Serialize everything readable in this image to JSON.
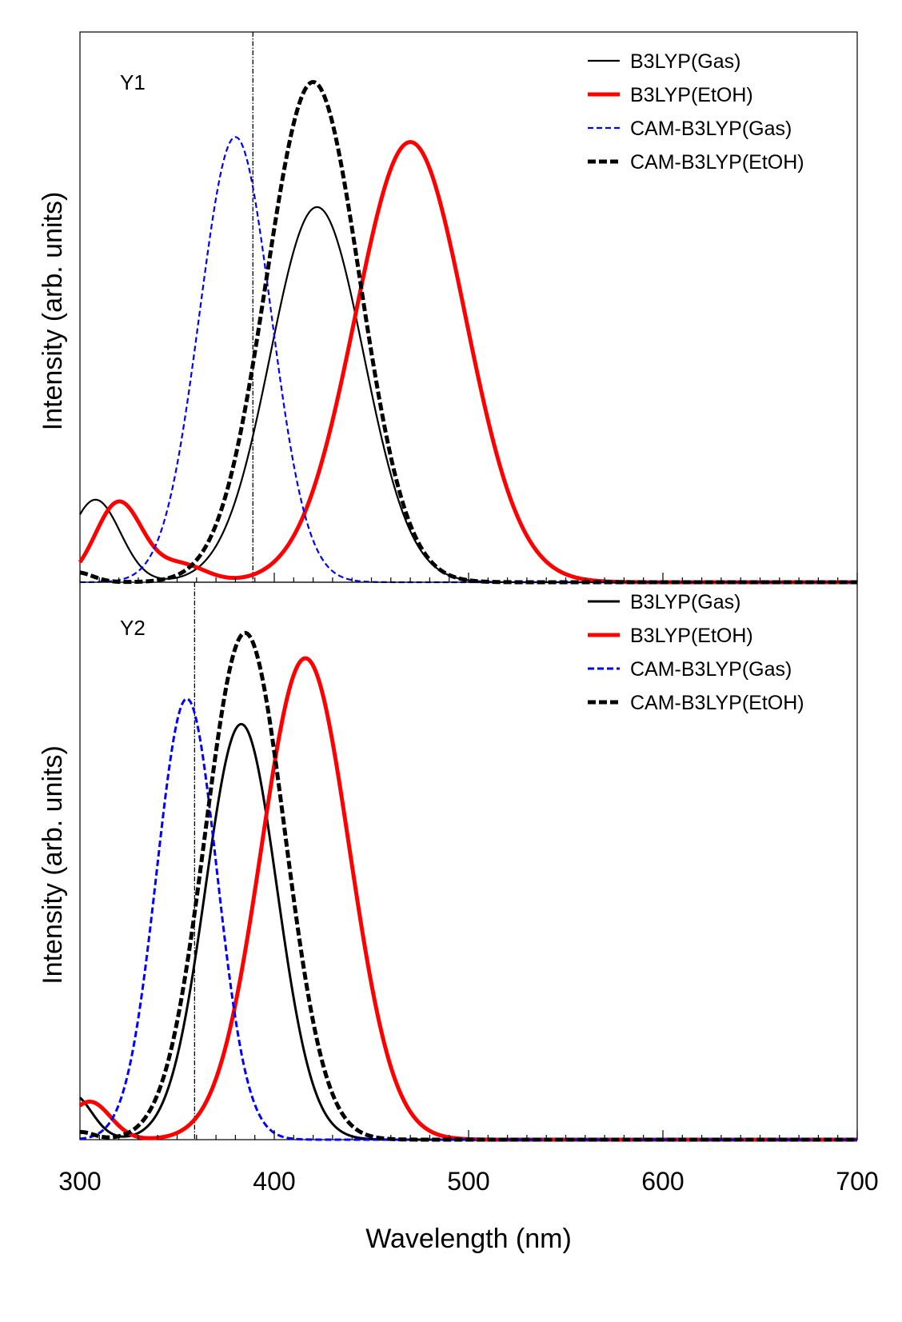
{
  "chart_data": [
    {
      "type": "line",
      "panel_label": "Y1",
      "xlabel": "Wavelength (nm)",
      "ylabel": "Intensity (arb. units)",
      "xlim": [
        300,
        700
      ],
      "ylim": [
        0,
        1.1
      ],
      "grid": false,
      "legend_position": "top-right",
      "reference_line_x": 389,
      "series": [
        {
          "name": "B3LYP(Gas)",
          "style": "thin-solid",
          "color": "#000000",
          "peaks": [
            {
              "center": 422,
              "height": 0.75,
              "width": 34
            },
            {
              "center": 308,
              "height": 0.165,
              "width": 18
            }
          ]
        },
        {
          "name": "B3LYP(EtOH)",
          "style": "thick-solid",
          "color": "#ff0000",
          "peaks": [
            {
              "center": 470,
              "height": 0.88,
              "width": 40
            },
            {
              "center": 320,
              "height": 0.16,
              "width": 17
            },
            {
              "center": 352,
              "height": 0.035,
              "width": 18
            }
          ]
        },
        {
          "name": "CAM-B3LYP(Gas)",
          "style": "thin-dashed",
          "color": "#0000ff",
          "peaks": [
            {
              "center": 380,
              "height": 0.89,
              "width": 26
            }
          ]
        },
        {
          "name": "CAM-B3LYP(EtOH)",
          "style": "thick-dashed",
          "color": "#000000",
          "peaks": [
            {
              "center": 420,
              "height": 1.0,
              "width": 34
            },
            {
              "center": 298,
              "height": 0.02,
              "width": 12
            }
          ]
        }
      ]
    },
    {
      "type": "line",
      "panel_label": "Y2",
      "xlabel": "Wavelength (nm)",
      "ylabel": "Intensity (arb. units)",
      "xlim": [
        300,
        700
      ],
      "ylim": [
        0,
        1.1
      ],
      "grid": false,
      "legend_position": "top-right",
      "reference_line_x": 359,
      "series": [
        {
          "name": "B3LYP(Gas)",
          "style": "solid",
          "color": "#000000",
          "peaks": [
            {
              "center": 383,
              "height": 0.82,
              "width": 26
            },
            {
              "center": 296,
              "height": 0.09,
              "width": 14
            }
          ]
        },
        {
          "name": "B3LYP(EtOH)",
          "style": "thick-solid",
          "color": "#ff0000",
          "peaks": [
            {
              "center": 416,
              "height": 0.95,
              "width": 32
            },
            {
              "center": 305,
              "height": 0.075,
              "width": 15
            }
          ]
        },
        {
          "name": "CAM-B3LYP(Gas)",
          "style": "dashed",
          "color": "#0000ff",
          "peaks": [
            {
              "center": 355,
              "height": 0.87,
              "width": 22
            }
          ]
        },
        {
          "name": "CAM-B3LYP(EtOH)",
          "style": "thick-dashed",
          "color": "#000000",
          "peaks": [
            {
              "center": 385,
              "height": 1.0,
              "width": 29
            },
            {
              "center": 300,
              "height": 0.015,
              "width": 10
            }
          ]
        }
      ]
    }
  ],
  "x_axis": {
    "label": "Wavelength (nm)",
    "major_ticks": [
      300,
      400,
      500,
      600,
      700
    ],
    "tick_labels": [
      "300",
      "400",
      "500",
      "600",
      "700"
    ],
    "minor_step": 10
  },
  "colors": {
    "axis": "#000000",
    "red": "#ff0000",
    "blue": "#0000ff",
    "black": "#000000"
  }
}
